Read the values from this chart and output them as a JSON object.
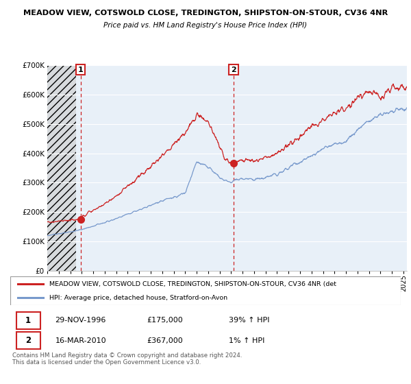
{
  "title_line1": "MEADOW VIEW, COTSWOLD CLOSE, TREDINGTON, SHIPSTON-ON-STOUR, CV36 4NR",
  "title_line2": "Price paid vs. HM Land Registry's House Price Index (HPI)",
  "ylim": [
    0,
    700000
  ],
  "yticks": [
    0,
    100000,
    200000,
    300000,
    400000,
    500000,
    600000,
    700000
  ],
  "ytick_labels": [
    "£0",
    "£100K",
    "£200K",
    "£300K",
    "£400K",
    "£500K",
    "£600K",
    "£700K"
  ],
  "legend_line1": "MEADOW VIEW, COTSWOLD CLOSE, TREDINGTON, SHIPSTON-ON-STOUR, CV36 4NR (det",
  "legend_line2": "HPI: Average price, detached house, Stratford-on-Avon",
  "sale1_date": 1996.91,
  "sale1_price": 175000,
  "sale2_date": 2010.21,
  "sale2_price": 367000,
  "table_data": [
    [
      "1",
      "29-NOV-1996",
      "£175,000",
      "39% ↑ HPI"
    ],
    [
      "2",
      "16-MAR-2010",
      "£367,000",
      "1% ↑ HPI"
    ]
  ],
  "footer": "Contains HM Land Registry data © Crown copyright and database right 2024.\nThis data is licensed under the Open Government Licence v3.0.",
  "hatch_start": 1994.0,
  "hatch_end": 1996.5,
  "red_line_color": "#cc2222",
  "blue_line_color": "#7799cc",
  "plot_bg_color": "#e8f0f8",
  "grid_color": "#ffffff",
  "xmin": 1994.0,
  "xmax": 2025.3
}
